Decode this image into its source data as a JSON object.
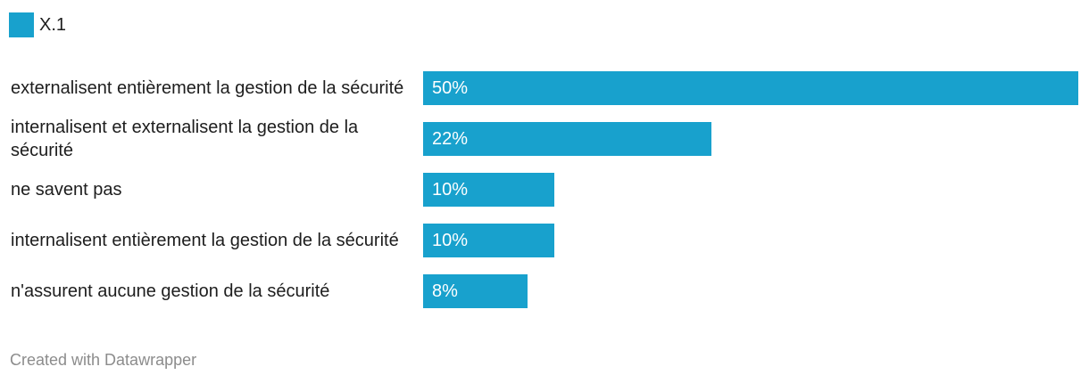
{
  "legend": {
    "label": "X.1"
  },
  "colors": {
    "bar": "#18a1cd"
  },
  "footer": {
    "credit": "Created with Datawrapper"
  },
  "chart_data": {
    "type": "bar",
    "orientation": "horizontal",
    "categories": [
      "externalisent entièrement la gestion de la sécurité",
      "internalisent et externalisent la gestion de la sécurité",
      "ne savent pas",
      "internalisent entièrement la gestion de la sécurité",
      "n'assurent aucune gestion de la sécurité"
    ],
    "series": [
      {
        "name": "X.1",
        "values": [
          50,
          22,
          10,
          10,
          8
        ]
      }
    ],
    "value_labels": [
      "50%",
      "22%",
      "10%",
      "10%",
      "8%"
    ],
    "xlim": [
      0,
      50
    ],
    "grid": false,
    "legend_position": "top-left"
  }
}
